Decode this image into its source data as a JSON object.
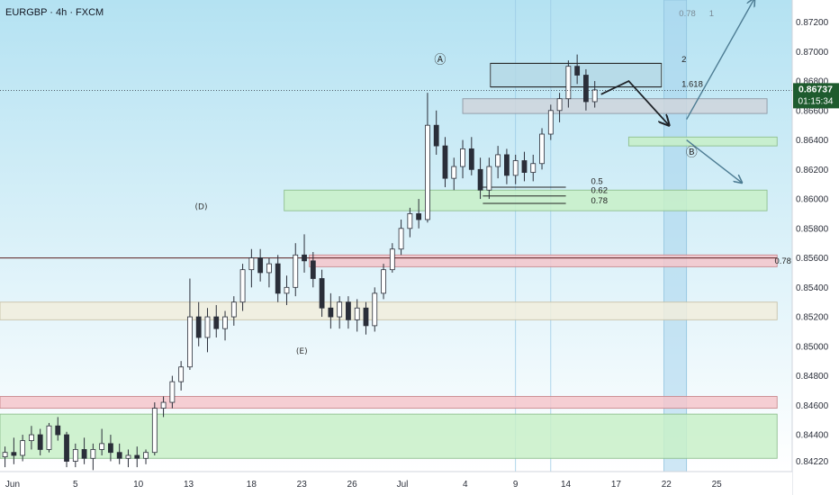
{
  "header": {
    "symbol": "EURGBP · 4h · FXCM"
  },
  "colors": {
    "background_top": "#b4e2f2",
    "background_bottom": "#ffffff",
    "candle_up": "#2a2e39",
    "candle_down": "#2a2e39",
    "candle_up_fill": "#ffffff",
    "axis_text": "#2a2e39",
    "price_tag_bg": "#1e5b2e",
    "price_tag_text": "#ffffff",
    "zone_green": "#c8f0c8",
    "zone_red": "#f4c6cb",
    "zone_beige": "#f1eddc",
    "zone_grey": "#cfd5dc",
    "zone_blue": "#b5d8e5",
    "projection_dark": "#1f2328",
    "projection_teal": "#4d7c93",
    "vband": "#a6d3ec"
  },
  "current_price": {
    "price_label": "0.86737",
    "countdown_label": "01:15:34",
    "value": 0.86737
  },
  "annotations": [
    {
      "text": "Ⓐ",
      "name": "wave-a-label",
      "x": 17.5,
      "y": 0.8692
    },
    {
      "text": "(D)",
      "name": "wave-d-label",
      "x": 8.0,
      "y": 0.8593
    },
    {
      "text": "(E)",
      "name": "wave-e-label",
      "x": 12.0,
      "y": 0.8495
    },
    {
      "text": "Ⓑ",
      "name": "wave-b-label",
      "x": 27.5,
      "y": 0.8629
    }
  ],
  "fib_labels": [
    {
      "text": "2",
      "name": "fib-2-label",
      "x": 27.1,
      "y": 0.8693
    },
    {
      "text": "1.618",
      "name": "fib-1618-label",
      "x": 27.1,
      "y": 0.8676
    },
    {
      "text": "0.5",
      "name": "fib-05-label",
      "x": 23.5,
      "y": 0.861
    },
    {
      "text": "0.62",
      "name": "fib-062-label",
      "x": 23.5,
      "y": 0.8604
    },
    {
      "text": "0.78",
      "name": "fib-078-label",
      "x": 23.5,
      "y": 0.8597
    },
    {
      "text": "0.78",
      "name": "fib-078-top-label",
      "x": 27.0,
      "y": 0.8724
    },
    {
      "text": "1",
      "name": "fib-1-top-label",
      "x": 28.2,
      "y": 0.8724
    },
    {
      "text": "0.78",
      "name": "fib-078-right-label",
      "x": 30.8,
      "y": 0.8556
    }
  ],
  "chart_data": {
    "type": "candlestick",
    "title": "EURGBP · 4h · FXCM",
    "x_tick_labels": [
      {
        "label": "Jun",
        "x": 0.5
      },
      {
        "label": "5",
        "x": 3.0
      },
      {
        "label": "10",
        "x": 5.5
      },
      {
        "label": "13",
        "x": 7.5
      },
      {
        "label": "18",
        "x": 10.0
      },
      {
        "label": "23",
        "x": 12.0
      },
      {
        "label": "26",
        "x": 14.0
      },
      {
        "label": "Jul",
        "x": 16.0
      },
      {
        "label": "4",
        "x": 18.5
      },
      {
        "label": "9",
        "x": 20.5
      },
      {
        "label": "14",
        "x": 22.5
      },
      {
        "label": "17",
        "x": 24.5
      },
      {
        "label": "22",
        "x": 26.5
      },
      {
        "label": "25",
        "x": 28.5
      }
    ],
    "y_tick_labels": [
      "0.87200",
      "0.87000",
      "0.86800",
      "0.86600",
      "0.86400",
      "0.86200",
      "0.86000",
      "0.85800",
      "0.85600",
      "0.85400",
      "0.85200",
      "0.85000",
      "0.84800",
      "0.84600",
      "0.84400",
      "0.84220"
    ],
    "y_tick_values": [
      0.872,
      0.87,
      0.868,
      0.866,
      0.864,
      0.862,
      0.86,
      0.858,
      0.856,
      0.854,
      0.852,
      0.85,
      0.848,
      0.846,
      0.844,
      0.8422
    ],
    "xlim": [
      0,
      31.5
    ],
    "ylim": [
      0.8415,
      0.8735
    ],
    "candles": [
      [
        0.2,
        0.8425,
        0.8432,
        0.8418,
        0.8428
      ],
      [
        0.55,
        0.8428,
        0.8438,
        0.842,
        0.8426
      ],
      [
        0.9,
        0.8426,
        0.844,
        0.8422,
        0.8436
      ],
      [
        1.25,
        0.8436,
        0.8446,
        0.843,
        0.844
      ],
      [
        1.6,
        0.844,
        0.8444,
        0.8426,
        0.843
      ],
      [
        1.95,
        0.843,
        0.8448,
        0.8428,
        0.8446
      ],
      [
        2.3,
        0.8446,
        0.8452,
        0.8436,
        0.844
      ],
      [
        2.65,
        0.844,
        0.8442,
        0.8418,
        0.8422
      ],
      [
        3.0,
        0.8422,
        0.8434,
        0.8418,
        0.843
      ],
      [
        3.35,
        0.843,
        0.8438,
        0.842,
        0.8424
      ],
      [
        3.7,
        0.8424,
        0.8434,
        0.8416,
        0.843
      ],
      [
        4.05,
        0.843,
        0.8444,
        0.8426,
        0.8434
      ],
      [
        4.4,
        0.8434,
        0.844,
        0.8422,
        0.8428
      ],
      [
        4.75,
        0.8428,
        0.8434,
        0.842,
        0.8424
      ],
      [
        5.1,
        0.8424,
        0.843,
        0.8418,
        0.8426
      ],
      [
        5.45,
        0.8426,
        0.8432,
        0.8418,
        0.8424
      ],
      [
        5.8,
        0.8424,
        0.843,
        0.842,
        0.8428
      ],
      [
        6.15,
        0.8428,
        0.8462,
        0.8426,
        0.8458
      ],
      [
        6.5,
        0.8458,
        0.8466,
        0.8452,
        0.8462
      ],
      [
        6.85,
        0.8462,
        0.848,
        0.8458,
        0.8476
      ],
      [
        7.2,
        0.8476,
        0.849,
        0.847,
        0.8486
      ],
      [
        7.55,
        0.8486,
        0.8546,
        0.8484,
        0.852
      ],
      [
        7.9,
        0.852,
        0.853,
        0.85,
        0.8506
      ],
      [
        8.25,
        0.8506,
        0.8526,
        0.8496,
        0.852
      ],
      [
        8.6,
        0.852,
        0.8528,
        0.8506,
        0.8512
      ],
      [
        8.95,
        0.8512,
        0.8524,
        0.8504,
        0.852
      ],
      [
        9.3,
        0.852,
        0.8534,
        0.8514,
        0.853
      ],
      [
        9.65,
        0.853,
        0.8556,
        0.8524,
        0.8552
      ],
      [
        10.0,
        0.8552,
        0.8566,
        0.854,
        0.856
      ],
      [
        10.35,
        0.856,
        0.8566,
        0.8544,
        0.855
      ],
      [
        10.7,
        0.855,
        0.856,
        0.854,
        0.8556
      ],
      [
        11.05,
        0.8556,
        0.8562,
        0.853,
        0.8536
      ],
      [
        11.4,
        0.8536,
        0.8548,
        0.8528,
        0.854
      ],
      [
        11.75,
        0.854,
        0.857,
        0.8534,
        0.8562
      ],
      [
        12.1,
        0.8562,
        0.8576,
        0.855,
        0.8558
      ],
      [
        12.45,
        0.8558,
        0.8564,
        0.854,
        0.8546
      ],
      [
        12.8,
        0.8546,
        0.8552,
        0.852,
        0.8526
      ],
      [
        13.15,
        0.8526,
        0.8536,
        0.8512,
        0.852
      ],
      [
        13.5,
        0.852,
        0.8534,
        0.8512,
        0.853
      ],
      [
        13.85,
        0.853,
        0.8534,
        0.8512,
        0.8518
      ],
      [
        14.2,
        0.8518,
        0.8532,
        0.851,
        0.8526
      ],
      [
        14.55,
        0.8526,
        0.853,
        0.8508,
        0.8514
      ],
      [
        14.9,
        0.8514,
        0.854,
        0.851,
        0.8536
      ],
      [
        15.25,
        0.8536,
        0.8556,
        0.8532,
        0.8552
      ],
      [
        15.6,
        0.8552,
        0.857,
        0.855,
        0.8566
      ],
      [
        15.95,
        0.8566,
        0.8586,
        0.8562,
        0.858
      ],
      [
        16.3,
        0.858,
        0.8594,
        0.8574,
        0.859
      ],
      [
        16.65,
        0.859,
        0.86,
        0.858,
        0.8586
      ],
      [
        17.0,
        0.8586,
        0.8672,
        0.8584,
        0.865
      ],
      [
        17.35,
        0.865,
        0.866,
        0.863,
        0.8636
      ],
      [
        17.7,
        0.8636,
        0.8642,
        0.8608,
        0.8614
      ],
      [
        18.05,
        0.8614,
        0.8628,
        0.8606,
        0.8622
      ],
      [
        18.4,
        0.8622,
        0.864,
        0.8614,
        0.8634
      ],
      [
        18.75,
        0.8634,
        0.8642,
        0.8616,
        0.862
      ],
      [
        19.1,
        0.862,
        0.8628,
        0.86,
        0.8606
      ],
      [
        19.45,
        0.8606,
        0.8628,
        0.86,
        0.8622
      ],
      [
        19.8,
        0.8622,
        0.8636,
        0.8614,
        0.863
      ],
      [
        20.15,
        0.863,
        0.8634,
        0.861,
        0.8616
      ],
      [
        20.5,
        0.8616,
        0.863,
        0.861,
        0.8626
      ],
      [
        20.85,
        0.8626,
        0.8632,
        0.8612,
        0.8618
      ],
      [
        21.2,
        0.8618,
        0.863,
        0.8612,
        0.8624
      ],
      [
        21.55,
        0.8624,
        0.8648,
        0.862,
        0.8644
      ],
      [
        21.9,
        0.8644,
        0.8664,
        0.864,
        0.866
      ],
      [
        22.25,
        0.866,
        0.8672,
        0.8652,
        0.8668
      ],
      [
        22.6,
        0.8668,
        0.8694,
        0.8662,
        0.869
      ],
      [
        22.95,
        0.869,
        0.8698,
        0.8678,
        0.8684
      ],
      [
        23.3,
        0.8684,
        0.8688,
        0.866,
        0.8666
      ],
      [
        23.65,
        0.8666,
        0.868,
        0.8662,
        0.8674
      ]
    ],
    "zones": [
      {
        "name": "zone-green-bottom",
        "color": "zone_green",
        "x0": 0,
        "x1": 30.9,
        "y0": 0.8424,
        "y1": 0.8454,
        "stroke": "#8fbf8f"
      },
      {
        "name": "zone-red-bottom",
        "color": "zone_red",
        "x0": 0,
        "x1": 30.9,
        "y0": 0.8458,
        "y1": 0.8466,
        "stroke": "#c98a8f"
      },
      {
        "name": "zone-beige-mid",
        "color": "zone_beige",
        "x0": 0,
        "x1": 30.9,
        "y0": 0.8518,
        "y1": 0.853,
        "stroke": "#c9c2a8"
      },
      {
        "name": "zone-red-mid",
        "color": "zone_red",
        "x0": 12.3,
        "x1": 30.9,
        "y0": 0.8554,
        "y1": 0.8562,
        "stroke": "#c98a8f"
      },
      {
        "name": "zone-green-d",
        "color": "zone_green",
        "x0": 11.3,
        "x1": 30.5,
        "y0": 0.8592,
        "y1": 0.8606,
        "stroke": "#8fbf8f"
      },
      {
        "name": "zone-grey-top",
        "color": "zone_grey",
        "x0": 18.4,
        "x1": 30.5,
        "y0": 0.8658,
        "y1": 0.8668,
        "stroke": "#8e97a3"
      },
      {
        "name": "zone-blue-ext",
        "color": "zone_blue",
        "x0": 19.5,
        "x1": 26.3,
        "y0": 0.8676,
        "y1": 0.8692,
        "stroke": "#333333"
      },
      {
        "name": "zone-green-b",
        "color": "zone_green",
        "x0": 25.0,
        "x1": 30.9,
        "y0": 0.8636,
        "y1": 0.8642,
        "stroke": "#8fbf8f"
      }
    ],
    "vbands": [
      {
        "name": "vband-projection",
        "x0": 26.4,
        "x1": 27.3
      }
    ],
    "vlines": [
      {
        "name": "vline-9",
        "x": 20.5
      },
      {
        "name": "vline-14",
        "x": 21.9
      }
    ],
    "hlines": [
      {
        "name": "hline-056-level",
        "y": 0.856,
        "x0": 0,
        "x1": 30.9,
        "color": "#5a1f1f"
      }
    ],
    "fib_lines": [
      {
        "name": "fib-2-line",
        "y": 0.8692,
        "x0": 19.5,
        "x1": 26.3
      },
      {
        "name": "fib-1618-line",
        "y": 0.8676,
        "x0": 19.5,
        "x1": 26.3
      },
      {
        "name": "fib-05-line",
        "y": 0.8608,
        "x0": 19.2,
        "x1": 22.5
      },
      {
        "name": "fib-062-line",
        "y": 0.8602,
        "x0": 19.2,
        "x1": 22.5
      },
      {
        "name": "fib-078-line",
        "y": 0.8597,
        "x0": 19.2,
        "x1": 22.5
      }
    ],
    "projections": [
      {
        "name": "projection-path-dark",
        "color": "projection_dark",
        "points": [
          [
            23.9,
            0.8671
          ],
          [
            25.0,
            0.868
          ],
          [
            26.6,
            0.865
          ]
        ],
        "arrow": true
      },
      {
        "name": "projection-path-up",
        "color": "projection_teal",
        "points": [
          [
            27.3,
            0.8654
          ],
          [
            30.0,
            0.8736
          ]
        ],
        "arrow": true
      },
      {
        "name": "projection-path-down",
        "color": "projection_teal",
        "points": [
          [
            27.3,
            0.864
          ],
          [
            29.5,
            0.8611
          ]
        ],
        "arrow": true
      }
    ]
  }
}
